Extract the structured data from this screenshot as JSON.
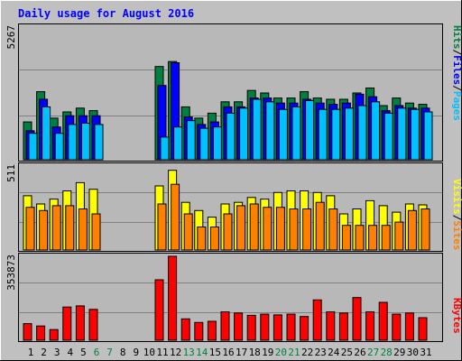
{
  "chart_data": [
    {
      "type": "bar",
      "title": "Daily usage for August 2016",
      "panel": "pages-files-hits",
      "ymax_label": "5267",
      "ylim": [
        0,
        5267
      ],
      "legend": [
        "Pages",
        "Files",
        "Hits"
      ],
      "categories": [
        "1",
        "2",
        "3",
        "4",
        "5",
        "6",
        "7",
        "8",
        "9",
        "10",
        "11",
        "12",
        "13",
        "14",
        "15",
        "16",
        "17",
        "18",
        "19",
        "20",
        "21",
        "22",
        "23",
        "24",
        "25",
        "26",
        "27",
        "28",
        "29",
        "30",
        "31"
      ],
      "series": [
        {
          "name": "Hits",
          "values": [
            1500,
            2700,
            1650,
            1900,
            2050,
            1950,
            0,
            0,
            0,
            0,
            3700,
            3900,
            2100,
            1650,
            1850,
            2300,
            2300,
            2750,
            2650,
            2450,
            2450,
            2700,
            2450,
            2400,
            2400,
            2650,
            2850,
            2150,
            2450,
            2250,
            2200
          ]
        },
        {
          "name": "Files",
          "values": [
            1150,
            2400,
            1300,
            1750,
            1750,
            1750,
            0,
            0,
            0,
            0,
            2950,
            3850,
            1700,
            1400,
            1500,
            2100,
            2100,
            2450,
            2450,
            2250,
            2250,
            2400,
            2250,
            2200,
            2250,
            2600,
            2500,
            1950,
            2150,
            2050,
            2050
          ]
        },
        {
          "name": "Pages",
          "values": [
            1050,
            2100,
            1050,
            1400,
            1450,
            1400,
            0,
            0,
            0,
            0,
            900,
            1300,
            1550,
            1250,
            1300,
            1850,
            2050,
            2400,
            2300,
            2000,
            2100,
            2350,
            2000,
            2000,
            2050,
            2150,
            2300,
            1850,
            2050,
            2000,
            1900
          ]
        }
      ],
      "colors": {
        "Hits": "#008040",
        "Files": "#0000ff",
        "Pages": "#00c0ff"
      }
    },
    {
      "type": "bar",
      "panel": "visits-sites",
      "ymax_label": "511",
      "ylim": [
        0,
        511
      ],
      "legend": [
        "Sites",
        "Visits"
      ],
      "categories": [
        "1",
        "2",
        "3",
        "4",
        "5",
        "6",
        "7",
        "8",
        "9",
        "10",
        "11",
        "12",
        "13",
        "14",
        "15",
        "16",
        "17",
        "18",
        "19",
        "20",
        "21",
        "22",
        "23",
        "24",
        "25",
        "26",
        "27",
        "28",
        "29",
        "30",
        "31"
      ],
      "series": [
        {
          "name": "Visits",
          "values": [
            330,
            280,
            310,
            360,
            410,
            370,
            0,
            0,
            0,
            0,
            390,
            485,
            290,
            240,
            200,
            280,
            290,
            320,
            310,
            350,
            360,
            360,
            350,
            330,
            220,
            250,
            300,
            270,
            230,
            280,
            275
          ]
        },
        {
          "name": "Sites",
          "values": [
            260,
            240,
            270,
            270,
            250,
            220,
            0,
            0,
            0,
            0,
            280,
            400,
            220,
            140,
            140,
            220,
            270,
            280,
            260,
            260,
            250,
            250,
            290,
            250,
            150,
            150,
            150,
            150,
            170,
            240,
            250
          ]
        }
      ],
      "colors": {
        "Visits": "#ffff00",
        "Sites": "#ff8000"
      }
    },
    {
      "type": "bar",
      "panel": "kbytes",
      "ymax_label": "353873",
      "ylim": [
        0,
        353873
      ],
      "legend": [
        "KBytes"
      ],
      "categories": [
        "1",
        "2",
        "3",
        "4",
        "5",
        "6",
        "7",
        "8",
        "9",
        "10",
        "11",
        "12",
        "13",
        "14",
        "15",
        "16",
        "17",
        "18",
        "19",
        "20",
        "21",
        "22",
        "23",
        "24",
        "25",
        "26",
        "27",
        "28",
        "29",
        "30",
        "31"
      ],
      "series": [
        {
          "name": "KBytes",
          "values": [
            70000,
            60000,
            45000,
            140000,
            145000,
            130000,
            0,
            0,
            0,
            0,
            255000,
            353873,
            90000,
            75000,
            80000,
            120000,
            115000,
            105000,
            110000,
            107000,
            110000,
            100000,
            170000,
            120000,
            115000,
            180000,
            120000,
            160000,
            110000,
            115000,
            95000
          ]
        }
      ],
      "colors": {
        "KBytes": "#ff0000"
      }
    }
  ],
  "x_label_colors": {
    "weekday": "#000000",
    "weekend": "#008040"
  },
  "weekend_days": [
    "6",
    "7",
    "13",
    "14",
    "20",
    "21",
    "27",
    "28"
  ]
}
